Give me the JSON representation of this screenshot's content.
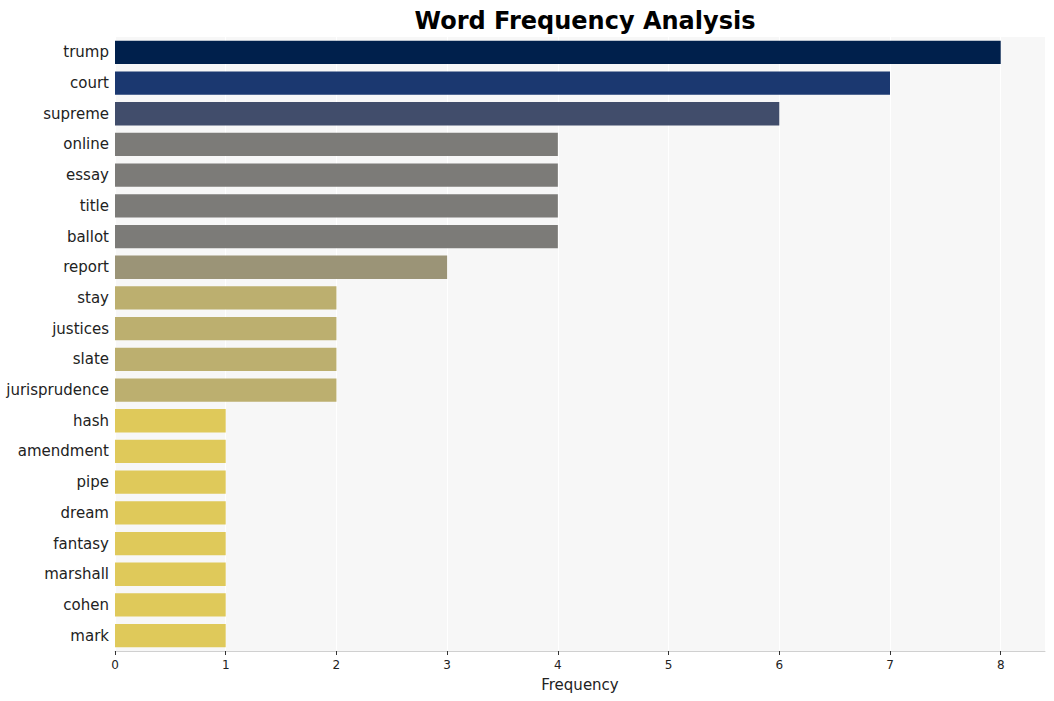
{
  "chart_data": {
    "type": "bar",
    "orientation": "horizontal",
    "title": "Word Frequency Analysis",
    "xlabel": "Frequency",
    "categories": [
      "trump",
      "court",
      "supreme",
      "online",
      "essay",
      "title",
      "ballot",
      "report",
      "stay",
      "justices",
      "slate",
      "jurisprudence",
      "hash",
      "amendment",
      "pipe",
      "dream",
      "fantasy",
      "marshall",
      "cohen",
      "mark"
    ],
    "values": [
      8,
      7,
      6,
      4,
      4,
      4,
      4,
      3,
      2,
      2,
      2,
      2,
      1,
      1,
      1,
      1,
      1,
      1,
      1,
      1
    ],
    "colors": [
      "#00204c",
      "#1b3870",
      "#414d6b",
      "#7c7b78",
      "#7c7b78",
      "#7c7b78",
      "#7c7b78",
      "#9b9477",
      "#bcaf6f",
      "#bcaf6f",
      "#bcaf6f",
      "#bcaf6f",
      "#dfc95a",
      "#dfc95a",
      "#dfc95a",
      "#dfc95a",
      "#dfc95a",
      "#dfc95a",
      "#dfc95a",
      "#dfc95a"
    ],
    "xlim": [
      0,
      8.4
    ],
    "xticks": [
      0,
      1,
      2,
      3,
      4,
      5,
      6,
      7,
      8
    ],
    "grid": true
  }
}
